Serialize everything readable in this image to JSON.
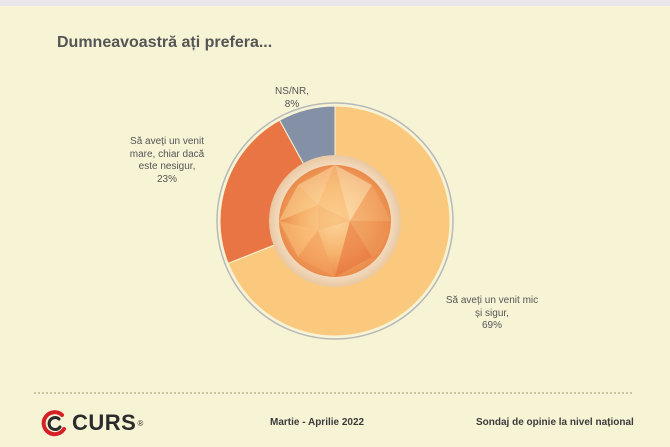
{
  "title": "Dumneavoastră ați prefera...",
  "chart_data": {
    "type": "pie",
    "categories": [
      "Să aveți un venit mic și sigur,",
      "Să aveți un venit mare, chiar dacă este nesigur,",
      "NS/NR,"
    ],
    "values": [
      69,
      23,
      8
    ],
    "labels": [
      {
        "text": "Să aveți un venit mic\nși sigur,\n69%"
      },
      {
        "text": "Să aveți un venit\nmare, chiar dacă\neste nesigur,\n23%"
      },
      {
        "text": "NS/NR,\n8%"
      }
    ],
    "colors": [
      "#fbc97d",
      "#ea7544",
      "#8390a6"
    ]
  },
  "footer": {
    "logo": "CURS",
    "logo_reg": "®",
    "date": "Martie - Aprilie 2022",
    "note": "Sondaj de opinie la nivel național"
  }
}
